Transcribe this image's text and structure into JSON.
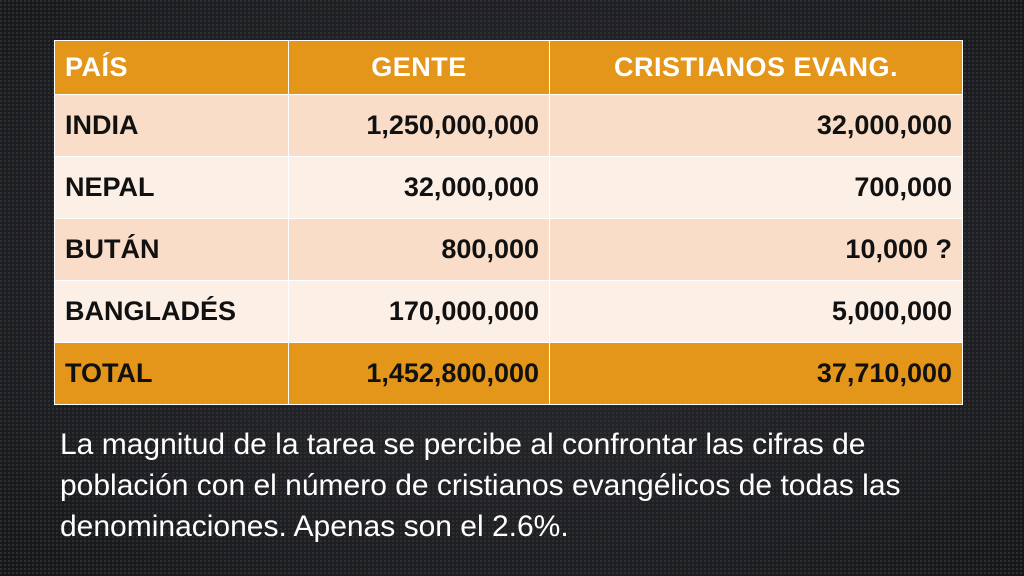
{
  "table": {
    "headers": [
      "PAÍS",
      "GENTE",
      "CRISTIANOS EVANG."
    ],
    "rows": [
      {
        "country": "INDIA",
        "people": "1,250,000,000",
        "evangelicals": "32,000,000"
      },
      {
        "country": "NEPAL",
        "people": "32,000,000",
        "evangelicals": "700,000"
      },
      {
        "country": "BUTÁN",
        "people": "800,000",
        "evangelicals": "10,000 ?"
      },
      {
        "country": "BANGLADÉS",
        "people": "170,000,000",
        "evangelicals": "5,000,000"
      }
    ],
    "total": {
      "country": "TOTAL",
      "people": "1,452,800,000",
      "evangelicals": "37,710,000"
    }
  },
  "caption": "La magnitud de la tarea se percibe al confrontar las cifras de población con el número de cristianos evangélicos de todas las denominaciones. Apenas son el 2.6%.",
  "colors": {
    "accent": "#e3961a",
    "row_light": "#f9ddc8",
    "row_lighter": "#fcefe6",
    "background": "#232427"
  }
}
